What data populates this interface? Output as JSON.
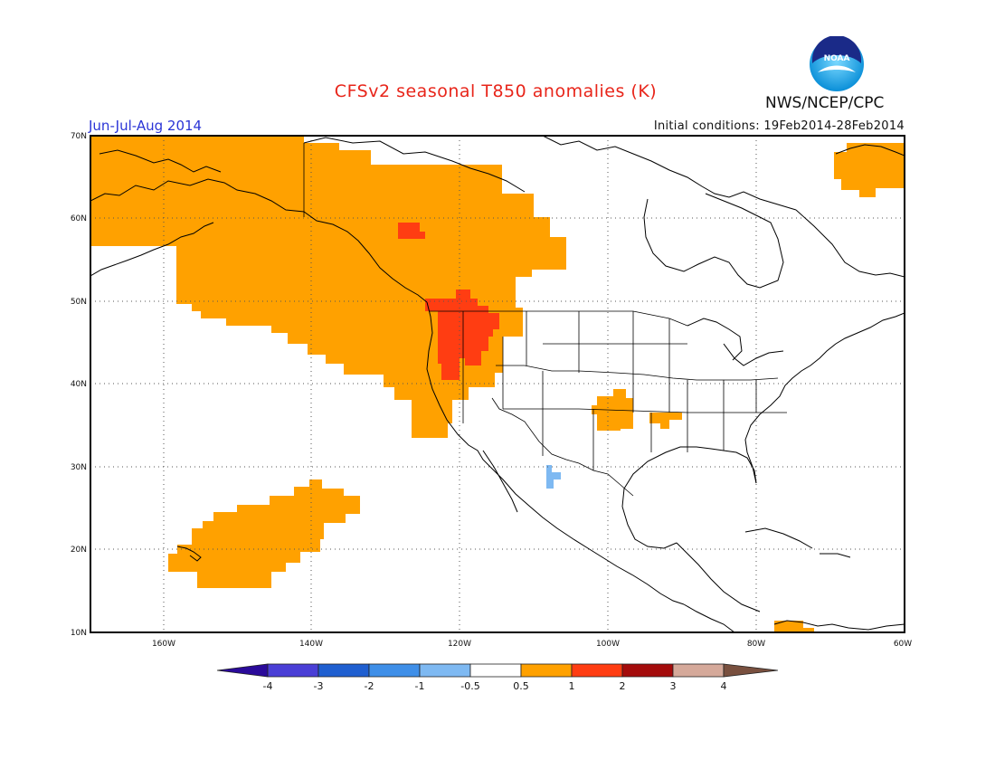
{
  "title": "CFSv2 seasonal T850 anomalies (K)",
  "period": "Jun-Jul-Aug 2014",
  "initial_conditions": "Initial conditions: 19Feb2014-28Feb2014",
  "agency": "NWS/NCEP/CPC",
  "logo": {
    "text": "NOAA",
    "icon": "noaa-logo"
  },
  "map": {
    "lat_labels": [
      "70N",
      "60N",
      "50N",
      "40N",
      "30N",
      "20N",
      "10N"
    ],
    "lon_labels": [
      "160W",
      "140W",
      "120W",
      "100W",
      "80W",
      "60W"
    ],
    "anomaly_regions": [
      {
        "name": "Alaska / NE Pacific / Western Canada",
        "category": "0.5 to 1"
      },
      {
        "name": "Pacific Northwest / Northern Rockies",
        "category": "1 to 2"
      },
      {
        "name": "Central Plains (Kansas)",
        "category": "0.5 to 1"
      },
      {
        "name": "Arkansas / Missouri border",
        "category": "0.5 to 1"
      },
      {
        "name": "Hawaii region",
        "category": "0.5 to 1"
      },
      {
        "name": "Greenland",
        "category": "0.5 to 1"
      },
      {
        "name": "Northern South America",
        "category": "0.5 to 1"
      },
      {
        "name": "Northwest Mexico",
        "category": "-1 to -0.5"
      }
    ]
  },
  "colorbar": {
    "labels": [
      "-4",
      "-3",
      "-2",
      "-1",
      "-0.5",
      "0.5",
      "1",
      "2",
      "3",
      "4"
    ],
    "colors": [
      "#2a0a9a",
      "#4a3fd6",
      "#1f5fd0",
      "#3f8fe8",
      "#7eb9f2",
      "#ffffff",
      "#ffa100",
      "#ff3d12",
      "#a40b0b",
      "#d5a99a",
      "#79503f"
    ]
  }
}
